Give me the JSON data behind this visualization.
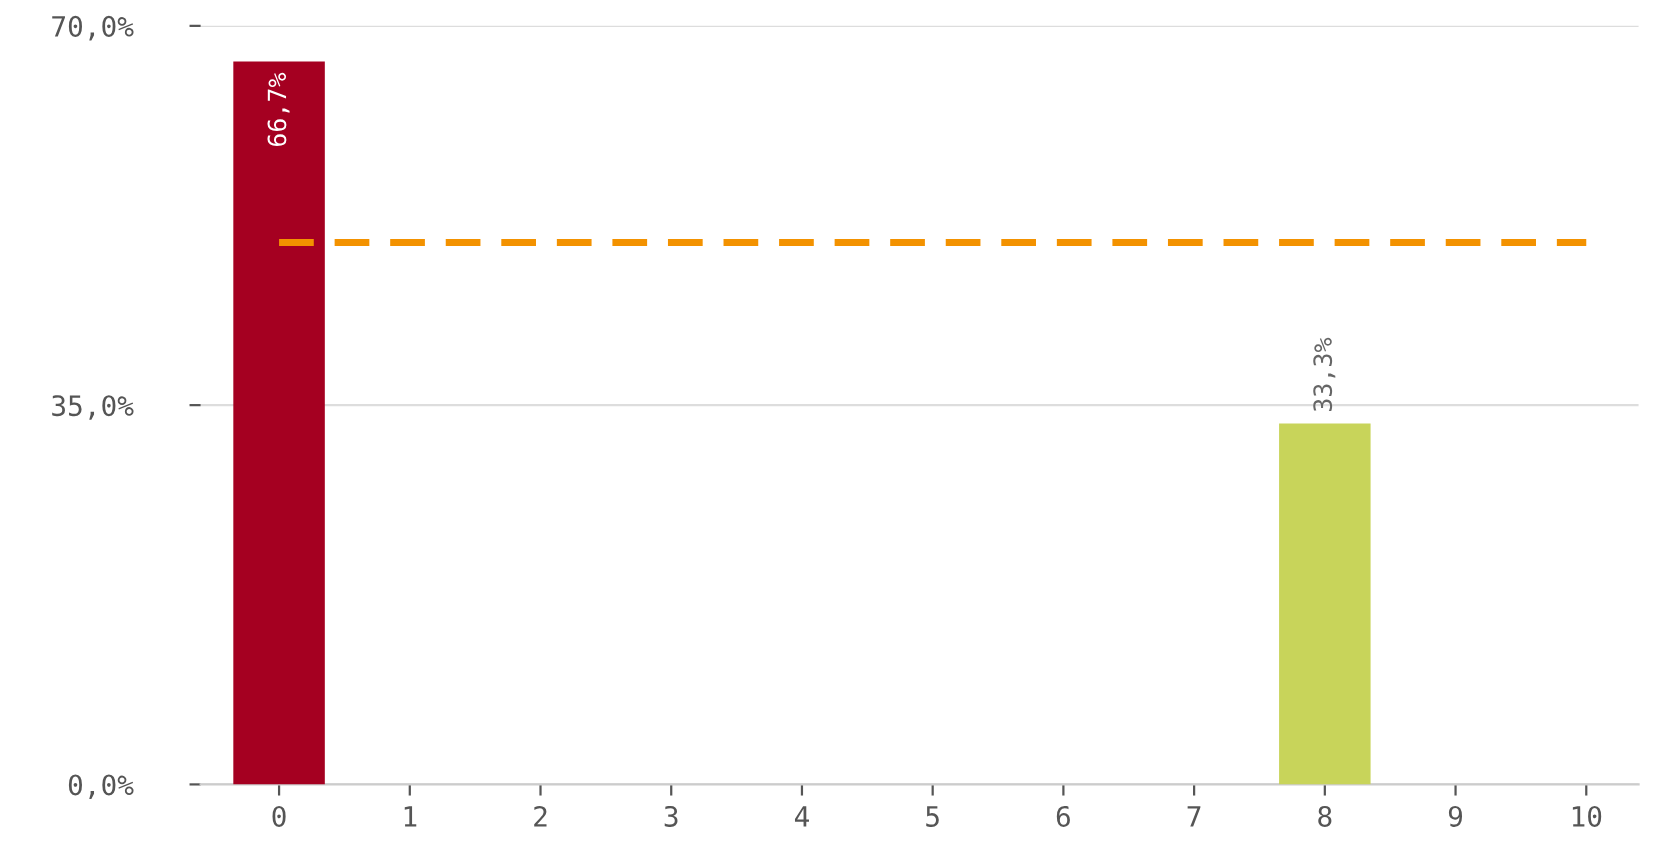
{
  "chart_data": {
    "type": "bar",
    "categories": [
      "0",
      "1",
      "2",
      "3",
      "4",
      "5",
      "6",
      "7",
      "8",
      "9",
      "10"
    ],
    "values": [
      66.7,
      null,
      null,
      null,
      null,
      null,
      null,
      null,
      33.3,
      null,
      null
    ],
    "colors": [
      "#a50021",
      "#a50021",
      "#a50021",
      "#a50021",
      "#a50021",
      "#a50021",
      "#a50021",
      "#a50021",
      "#c8d45a",
      "#c8d45a",
      "#c8d45a"
    ],
    "value_labels": [
      "66,7%",
      null,
      null,
      null,
      null,
      null,
      null,
      null,
      "33,3%",
      null,
      null
    ],
    "ylim": [
      0,
      70
    ],
    "yticks": [
      {
        "value": 0,
        "label": "0,0%"
      },
      {
        "value": 35,
        "label": "35,0%"
      },
      {
        "value": 70,
        "label": "70,0%"
      }
    ],
    "grid": "y",
    "ref_lines": [
      {
        "axis": "y",
        "value": 50,
        "color": "#f39200",
        "line_style": "dashed"
      }
    ]
  }
}
